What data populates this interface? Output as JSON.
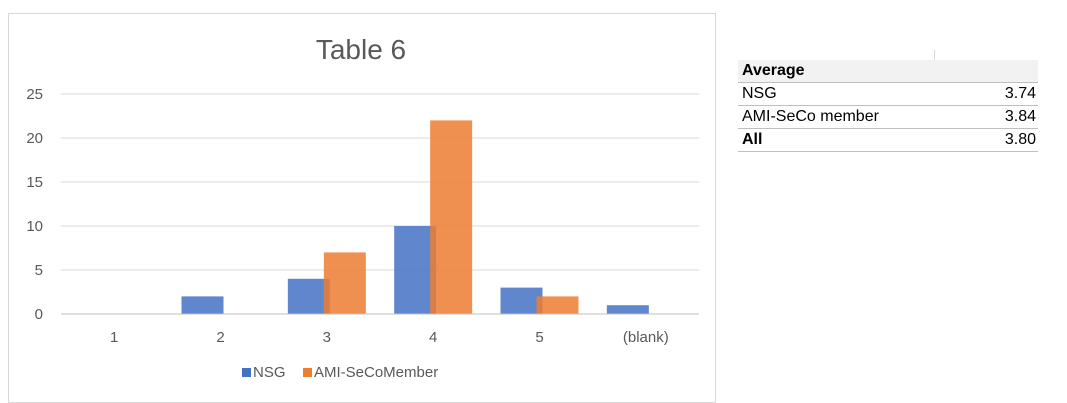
{
  "chart_data": {
    "type": "bar",
    "title": "Table 6",
    "categories": [
      "1",
      "2",
      "3",
      "4",
      "5",
      "(blank)"
    ],
    "series": [
      {
        "name": "NSG",
        "color": "#4472c4",
        "values": [
          0,
          2,
          4,
          10,
          3,
          1
        ]
      },
      {
        "name": "AMI-SeCoMember",
        "color": "#ed7d31",
        "values": [
          0,
          0,
          7,
          22,
          2,
          0
        ]
      }
    ],
    "ylim": [
      0,
      25
    ],
    "yticks": [
      0,
      5,
      10,
      15,
      20,
      25
    ],
    "grid": true,
    "legend": "bottom",
    "xlabel": "",
    "ylabel": ""
  },
  "summary_table": {
    "header": "Average",
    "rows": [
      {
        "label": "NSG",
        "value": "3.74",
        "bold": false
      },
      {
        "label": "AMI-SeCo member",
        "value": "3.84",
        "bold": false
      },
      {
        "label": "All",
        "value": "3.80",
        "bold": true
      }
    ]
  }
}
